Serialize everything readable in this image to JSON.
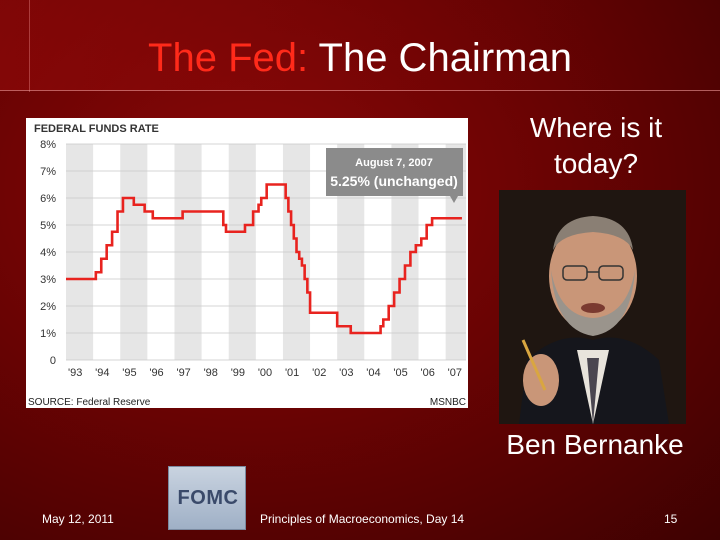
{
  "slide": {
    "title_part1": "The Fed:",
    "title_part2": "The Chairman",
    "side_question": "Where is it today?",
    "caption": "Ben Bernanke",
    "footer_date": "May 12, 2011",
    "footer_title": "Principles of Macroeconomics, Day 14",
    "slide_number": "15",
    "logo_text": "FOMC",
    "colors": {
      "background": "#6a0303",
      "title_accent": "#ff2a1a",
      "title_main": "#ffffff",
      "line": "#e8231f"
    }
  },
  "chart_data": {
    "type": "line",
    "title": "FEDERAL FUNDS RATE",
    "source": "SOURCE: Federal Reserve",
    "credit": "MSNBC",
    "callout_title": "August 7, 2007",
    "callout_value": "5.25% (unchanged)",
    "ylim": [
      0,
      8
    ],
    "y_ticks": [
      "0",
      "1%",
      "2%",
      "3%",
      "4%",
      "5%",
      "6%",
      "7%",
      "8%"
    ],
    "x_ticks": [
      "'93",
      "'94",
      "'95",
      "'96",
      "'97",
      "'98",
      "'99",
      "'00",
      "'01",
      "'02",
      "'03",
      "'04",
      "'05",
      "'06",
      "'07"
    ],
    "xlim": [
      1993,
      2007.75
    ],
    "series": [
      {
        "x": [
          1993,
          1994.0,
          1994.1,
          1994.3,
          1994.5,
          1994.7,
          1994.9,
          1995.1,
          1995.5,
          1995.9,
          1996.1,
          1996.2,
          1997.2,
          1997.3,
          1998.7,
          1998.8,
          1998.9,
          1999.5,
          1999.6,
          1999.9,
          2000.1,
          2000.2,
          2000.4,
          2001.0,
          2001.1,
          2001.2,
          2001.3,
          2001.4,
          2001.5,
          2001.6,
          2001.7,
          2001.8,
          2001.9,
          2002.0,
          2002.9,
          2003.0,
          2003.5,
          2004.5,
          2004.6,
          2004.7,
          2004.9,
          2005.1,
          2005.3,
          2005.5,
          2005.7,
          2005.9,
          2006.1,
          2006.3,
          2006.5,
          2007.6
        ],
        "values": [
          3.0,
          3.0,
          3.25,
          3.75,
          4.25,
          4.75,
          5.5,
          6.0,
          5.75,
          5.5,
          5.5,
          5.25,
          5.25,
          5.5,
          5.5,
          5.0,
          4.75,
          4.75,
          5.0,
          5.5,
          5.75,
          6.0,
          6.5,
          6.5,
          6.0,
          5.5,
          5.0,
          4.5,
          4.0,
          3.75,
          3.5,
          3.0,
          2.5,
          1.75,
          1.75,
          1.25,
          1.0,
          1.0,
          1.25,
          1.5,
          2.0,
          2.5,
          3.0,
          3.5,
          4.0,
          4.25,
          4.5,
          5.0,
          5.25,
          5.25
        ]
      }
    ],
    "grid": "alternating vertical bands",
    "legend": "none"
  }
}
